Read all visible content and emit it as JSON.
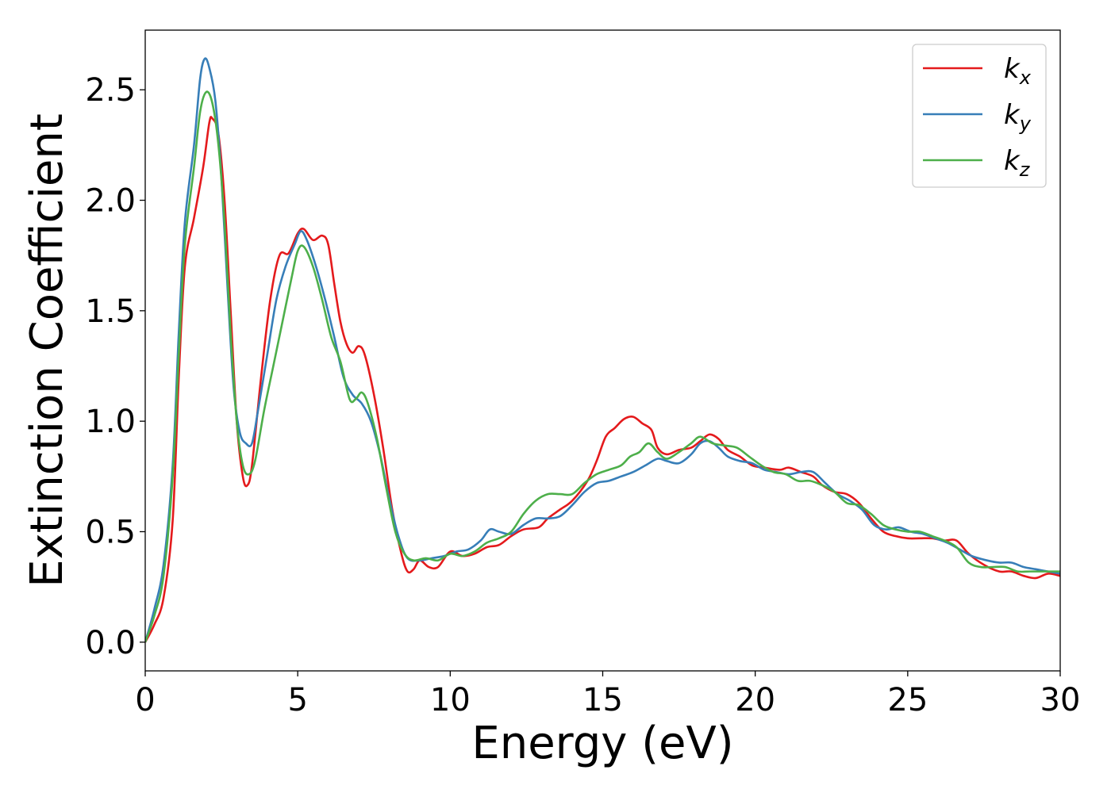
{
  "chart_data": {
    "type": "line",
    "xlabel": "Energy (eV)",
    "ylabel": "Extinction Coefficient",
    "xlim": [
      0,
      30
    ],
    "ylim": [
      -0.13,
      2.77
    ],
    "xticks": [
      0,
      5,
      10,
      15,
      20,
      25,
      30
    ],
    "xtick_labels": [
      "0",
      "5",
      "10",
      "15",
      "20",
      "25",
      "30"
    ],
    "yticks": [
      0.0,
      0.5,
      1.0,
      1.5,
      2.0,
      2.5
    ],
    "ytick_labels": [
      "0.0",
      "0.5",
      "1.0",
      "1.5",
      "2.0",
      "2.5"
    ],
    "grid": false,
    "legend_position": "top-right",
    "series": [
      {
        "name": "k_x",
        "label_base": "k",
        "label_sub": "x",
        "color": "#e41a1c",
        "points": [
          [
            0,
            0.0
          ],
          [
            0.3,
            0.08
          ],
          [
            0.6,
            0.2
          ],
          [
            0.9,
            0.55
          ],
          [
            1.1,
            1.2
          ],
          [
            1.3,
            1.7
          ],
          [
            1.6,
            1.92
          ],
          [
            1.9,
            2.15
          ],
          [
            2.1,
            2.35
          ],
          [
            2.2,
            2.37
          ],
          [
            2.4,
            2.3
          ],
          [
            2.6,
            2.0
          ],
          [
            2.8,
            1.5
          ],
          [
            3.0,
            1.0
          ],
          [
            3.2,
            0.75
          ],
          [
            3.35,
            0.71
          ],
          [
            3.5,
            0.8
          ],
          [
            3.8,
            1.2
          ],
          [
            4.1,
            1.55
          ],
          [
            4.4,
            1.75
          ],
          [
            4.7,
            1.76
          ],
          [
            5.0,
            1.85
          ],
          [
            5.2,
            1.87
          ],
          [
            5.5,
            1.82
          ],
          [
            5.8,
            1.84
          ],
          [
            6.0,
            1.8
          ],
          [
            6.2,
            1.62
          ],
          [
            6.4,
            1.45
          ],
          [
            6.6,
            1.35
          ],
          [
            6.8,
            1.31
          ],
          [
            7.0,
            1.34
          ],
          [
            7.2,
            1.3
          ],
          [
            7.5,
            1.12
          ],
          [
            7.8,
            0.88
          ],
          [
            8.1,
            0.6
          ],
          [
            8.4,
            0.4
          ],
          [
            8.6,
            0.32
          ],
          [
            8.8,
            0.33
          ],
          [
            9.0,
            0.37
          ],
          [
            9.3,
            0.34
          ],
          [
            9.6,
            0.34
          ],
          [
            10.0,
            0.41
          ],
          [
            10.4,
            0.39
          ],
          [
            10.8,
            0.4
          ],
          [
            11.2,
            0.43
          ],
          [
            11.6,
            0.44
          ],
          [
            12.0,
            0.48
          ],
          [
            12.4,
            0.51
          ],
          [
            12.9,
            0.52
          ],
          [
            13.2,
            0.56
          ],
          [
            13.6,
            0.6
          ],
          [
            14.0,
            0.64
          ],
          [
            14.5,
            0.73
          ],
          [
            14.8,
            0.82
          ],
          [
            15.1,
            0.93
          ],
          [
            15.4,
            0.97
          ],
          [
            15.7,
            1.01
          ],
          [
            16.0,
            1.02
          ],
          [
            16.3,
            0.99
          ],
          [
            16.6,
            0.96
          ],
          [
            16.8,
            0.88
          ],
          [
            17.1,
            0.85
          ],
          [
            17.5,
            0.87
          ],
          [
            17.9,
            0.88
          ],
          [
            18.2,
            0.91
          ],
          [
            18.5,
            0.94
          ],
          [
            18.8,
            0.92
          ],
          [
            19.1,
            0.87
          ],
          [
            19.5,
            0.84
          ],
          [
            19.9,
            0.8
          ],
          [
            20.3,
            0.79
          ],
          [
            20.8,
            0.78
          ],
          [
            21.1,
            0.79
          ],
          [
            21.5,
            0.77
          ],
          [
            21.9,
            0.75
          ],
          [
            22.2,
            0.71
          ],
          [
            22.6,
            0.68
          ],
          [
            23.0,
            0.67
          ],
          [
            23.4,
            0.63
          ],
          [
            23.8,
            0.56
          ],
          [
            24.2,
            0.5
          ],
          [
            24.6,
            0.48
          ],
          [
            25.0,
            0.47
          ],
          [
            25.4,
            0.47
          ],
          [
            25.8,
            0.47
          ],
          [
            26.2,
            0.46
          ],
          [
            26.6,
            0.46
          ],
          [
            27.0,
            0.4
          ],
          [
            27.5,
            0.35
          ],
          [
            28.0,
            0.32
          ],
          [
            28.4,
            0.32
          ],
          [
            28.8,
            0.3
          ],
          [
            29.2,
            0.29
          ],
          [
            29.6,
            0.31
          ],
          [
            30.0,
            0.3
          ]
        ]
      },
      {
        "name": "k_y",
        "label_base": "k",
        "label_sub": "y",
        "color": "#377eb8",
        "points": [
          [
            0,
            0.0
          ],
          [
            0.3,
            0.15
          ],
          [
            0.6,
            0.35
          ],
          [
            0.9,
            0.8
          ],
          [
            1.1,
            1.4
          ],
          [
            1.3,
            1.9
          ],
          [
            1.6,
            2.25
          ],
          [
            1.8,
            2.55
          ],
          [
            1.95,
            2.64
          ],
          [
            2.1,
            2.6
          ],
          [
            2.3,
            2.45
          ],
          [
            2.5,
            2.1
          ],
          [
            2.7,
            1.6
          ],
          [
            2.9,
            1.15
          ],
          [
            3.1,
            0.95
          ],
          [
            3.3,
            0.9
          ],
          [
            3.5,
            0.9
          ],
          [
            3.7,
            1.05
          ],
          [
            4.0,
            1.3
          ],
          [
            4.3,
            1.55
          ],
          [
            4.6,
            1.7
          ],
          [
            4.9,
            1.8
          ],
          [
            5.1,
            1.86
          ],
          [
            5.3,
            1.82
          ],
          [
            5.6,
            1.7
          ],
          [
            5.9,
            1.55
          ],
          [
            6.2,
            1.38
          ],
          [
            6.5,
            1.2
          ],
          [
            6.8,
            1.12
          ],
          [
            7.1,
            1.08
          ],
          [
            7.4,
            1.0
          ],
          [
            7.7,
            0.85
          ],
          [
            8.0,
            0.65
          ],
          [
            8.3,
            0.48
          ],
          [
            8.6,
            0.38
          ],
          [
            9.0,
            0.37
          ],
          [
            9.4,
            0.38
          ],
          [
            9.8,
            0.39
          ],
          [
            10.2,
            0.41
          ],
          [
            10.6,
            0.42
          ],
          [
            11.0,
            0.46
          ],
          [
            11.3,
            0.51
          ],
          [
            11.6,
            0.5
          ],
          [
            12.0,
            0.49
          ],
          [
            12.4,
            0.53
          ],
          [
            12.8,
            0.56
          ],
          [
            13.2,
            0.56
          ],
          [
            13.6,
            0.57
          ],
          [
            14.0,
            0.62
          ],
          [
            14.4,
            0.68
          ],
          [
            14.8,
            0.72
          ],
          [
            15.2,
            0.73
          ],
          [
            15.6,
            0.75
          ],
          [
            16.0,
            0.77
          ],
          [
            16.4,
            0.8
          ],
          [
            16.8,
            0.83
          ],
          [
            17.1,
            0.82
          ],
          [
            17.5,
            0.81
          ],
          [
            17.9,
            0.85
          ],
          [
            18.2,
            0.9
          ],
          [
            18.5,
            0.91
          ],
          [
            18.8,
            0.88
          ],
          [
            19.1,
            0.84
          ],
          [
            19.5,
            0.82
          ],
          [
            19.9,
            0.81
          ],
          [
            20.3,
            0.78
          ],
          [
            20.7,
            0.77
          ],
          [
            21.1,
            0.76
          ],
          [
            21.5,
            0.77
          ],
          [
            21.9,
            0.77
          ],
          [
            22.3,
            0.72
          ],
          [
            22.7,
            0.67
          ],
          [
            23.1,
            0.64
          ],
          [
            23.5,
            0.6
          ],
          [
            23.9,
            0.53
          ],
          [
            24.3,
            0.51
          ],
          [
            24.7,
            0.52
          ],
          [
            25.1,
            0.5
          ],
          [
            25.5,
            0.49
          ],
          [
            25.9,
            0.47
          ],
          [
            26.3,
            0.45
          ],
          [
            26.7,
            0.42
          ],
          [
            27.1,
            0.39
          ],
          [
            27.6,
            0.37
          ],
          [
            28.0,
            0.36
          ],
          [
            28.4,
            0.36
          ],
          [
            28.8,
            0.34
          ],
          [
            29.2,
            0.33
          ],
          [
            29.6,
            0.32
          ],
          [
            30.0,
            0.31
          ]
        ]
      },
      {
        "name": "k_z",
        "label_base": "k",
        "label_sub": "z",
        "color": "#4daf4a",
        "points": [
          [
            0,
            0.0
          ],
          [
            0.3,
            0.12
          ],
          [
            0.6,
            0.3
          ],
          [
            0.9,
            0.75
          ],
          [
            1.1,
            1.3
          ],
          [
            1.3,
            1.8
          ],
          [
            1.6,
            2.15
          ],
          [
            1.8,
            2.4
          ],
          [
            2.0,
            2.49
          ],
          [
            2.2,
            2.44
          ],
          [
            2.4,
            2.25
          ],
          [
            2.6,
            1.9
          ],
          [
            2.8,
            1.4
          ],
          [
            3.0,
            1.0
          ],
          [
            3.2,
            0.8
          ],
          [
            3.4,
            0.76
          ],
          [
            3.6,
            0.82
          ],
          [
            3.9,
            1.05
          ],
          [
            4.2,
            1.25
          ],
          [
            4.5,
            1.45
          ],
          [
            4.8,
            1.65
          ],
          [
            5.0,
            1.77
          ],
          [
            5.2,
            1.79
          ],
          [
            5.5,
            1.7
          ],
          [
            5.8,
            1.55
          ],
          [
            6.1,
            1.38
          ],
          [
            6.4,
            1.27
          ],
          [
            6.7,
            1.1
          ],
          [
            6.9,
            1.1
          ],
          [
            7.1,
            1.13
          ],
          [
            7.3,
            1.08
          ],
          [
            7.6,
            0.92
          ],
          [
            7.9,
            0.7
          ],
          [
            8.2,
            0.5
          ],
          [
            8.5,
            0.4
          ],
          [
            8.8,
            0.37
          ],
          [
            9.2,
            0.38
          ],
          [
            9.6,
            0.37
          ],
          [
            10.0,
            0.4
          ],
          [
            10.4,
            0.39
          ],
          [
            10.8,
            0.41
          ],
          [
            11.2,
            0.45
          ],
          [
            11.6,
            0.47
          ],
          [
            12.0,
            0.5
          ],
          [
            12.4,
            0.58
          ],
          [
            12.8,
            0.64
          ],
          [
            13.2,
            0.67
          ],
          [
            13.6,
            0.67
          ],
          [
            14.0,
            0.67
          ],
          [
            14.4,
            0.72
          ],
          [
            14.8,
            0.76
          ],
          [
            15.2,
            0.78
          ],
          [
            15.6,
            0.8
          ],
          [
            15.9,
            0.84
          ],
          [
            16.2,
            0.86
          ],
          [
            16.5,
            0.9
          ],
          [
            16.8,
            0.86
          ],
          [
            17.1,
            0.83
          ],
          [
            17.5,
            0.86
          ],
          [
            17.9,
            0.9
          ],
          [
            18.2,
            0.93
          ],
          [
            18.6,
            0.9
          ],
          [
            19.0,
            0.89
          ],
          [
            19.4,
            0.88
          ],
          [
            19.8,
            0.84
          ],
          [
            20.2,
            0.8
          ],
          [
            20.6,
            0.77
          ],
          [
            21.0,
            0.76
          ],
          [
            21.4,
            0.73
          ],
          [
            21.8,
            0.73
          ],
          [
            22.2,
            0.71
          ],
          [
            22.6,
            0.68
          ],
          [
            23.0,
            0.63
          ],
          [
            23.4,
            0.62
          ],
          [
            23.8,
            0.58
          ],
          [
            24.2,
            0.53
          ],
          [
            24.6,
            0.51
          ],
          [
            25.0,
            0.5
          ],
          [
            25.4,
            0.5
          ],
          [
            25.8,
            0.48
          ],
          [
            26.2,
            0.46
          ],
          [
            26.6,
            0.43
          ],
          [
            27.0,
            0.36
          ],
          [
            27.4,
            0.34
          ],
          [
            27.8,
            0.34
          ],
          [
            28.2,
            0.34
          ],
          [
            28.6,
            0.32
          ],
          [
            29.0,
            0.32
          ],
          [
            29.4,
            0.32
          ],
          [
            30.0,
            0.32
          ]
        ]
      }
    ]
  }
}
